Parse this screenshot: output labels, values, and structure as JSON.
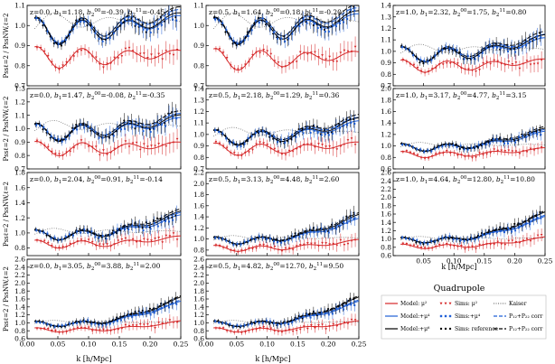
{
  "figure": {
    "ylabel_html": "P^{ss}_{ℓ2} / P^{ss}_{NW,ℓ2}",
    "ylabel_text": "Pssℓ=2 / PssNW,ℓ=2",
    "xlabel": "k [h/Mpc]"
  },
  "chart_data": [
    {
      "id": "p00",
      "type": "line",
      "label": "z=0.0, b1=1.18, b2^00=-0.39, b2^11=-0.45",
      "label_parts": [
        "z=0.0, ",
        "b",
        "1",
        "=1.18, ",
        "b",
        "2",
        "00",
        "=-0.39, ",
        "b",
        "2",
        "11",
        "=-0.45"
      ],
      "ylim": [
        0.7,
        1.1
      ],
      "yticks": [
        0.7,
        0.8,
        0.9,
        1.0,
        1.1
      ],
      "xlim": [
        0,
        0.25
      ],
      "xticks": [
        0.05,
        0.1,
        0.15,
        0.2,
        0.25
      ],
      "base": 0.97,
      "slope": 0.8,
      "red_off": 0.13,
      "noise": 0.02
    },
    {
      "id": "p01",
      "type": "line",
      "label": "z=0.5, b1=1.64, b2^00=0.18, b2^11=-0.20",
      "label_parts": [
        "z=0.5, ",
        "b",
        "1",
        "=1.64, ",
        "b",
        "2",
        "00",
        "=0.18, ",
        "b",
        "2",
        "11",
        "=-0.20"
      ],
      "ylim": [
        0.7,
        1.1
      ],
      "yticks": [
        0.7,
        0.8,
        0.9,
        1.0,
        1.1
      ],
      "xlim": [
        0,
        0.25
      ],
      "xticks": [
        0.05,
        0.1,
        0.15,
        0.2,
        0.25
      ],
      "base": 0.97,
      "slope": 0.9,
      "red_off": 0.14,
      "noise": 0.02
    },
    {
      "id": "p02",
      "type": "line",
      "label": "z=1.0, b1=2.32, b2^00=1.75, b2^11=0.80",
      "label_parts": [
        "z=1.0, ",
        "b",
        "1",
        "=2.32, ",
        "b",
        "2",
        "00",
        "=1.75, ",
        "b",
        "2",
        "11",
        "=0.80"
      ],
      "ylim": [
        0.7,
        1.4
      ],
      "yticks": [
        0.7,
        0.8,
        0.9,
        1.0,
        1.1,
        1.2,
        1.3,
        1.4
      ],
      "xlim": [
        0,
        0.25
      ],
      "xticks": [
        0.05,
        0.1,
        0.15,
        0.2,
        0.25
      ],
      "base": 0.97,
      "slope": 1.6,
      "red_off": 0.1,
      "noise": 0.03
    },
    {
      "id": "p10",
      "type": "line",
      "label": "z=0.0, b1=1.47, b2^00=-0.08, b2^11=-0.35",
      "label_parts": [
        "z=0.0, ",
        "b",
        "1",
        "=1.47, ",
        "b",
        "2",
        "00",
        "=-0.08, ",
        "b",
        "2",
        "11",
        "=-0.35"
      ],
      "ylim": [
        0.7,
        1.3
      ],
      "yticks": [
        0.7,
        0.8,
        0.9,
        1.0,
        1.1,
        1.2,
        1.3
      ],
      "xlim": [
        0,
        0.25
      ],
      "xticks": [
        0.05,
        0.1,
        0.15,
        0.2,
        0.25
      ],
      "base": 0.97,
      "slope": 1.2,
      "red_off": 0.12,
      "noise": 0.03
    },
    {
      "id": "p11",
      "type": "line",
      "label": "z=0.5, b1=2.18, b2^00=1.29, b2^11=0.36",
      "label_parts": [
        "z=0.5, ",
        "b",
        "1",
        "=2.18, ",
        "b",
        "2",
        "00",
        "=1.29, ",
        "b",
        "2",
        "11",
        "=0.36"
      ],
      "ylim": [
        0.7,
        1.4
      ],
      "yticks": [
        0.7,
        0.8,
        0.9,
        1.0,
        1.1,
        1.2,
        1.3,
        1.4
      ],
      "xlim": [
        0,
        0.25
      ],
      "xticks": [
        0.05,
        0.1,
        0.15,
        0.2,
        0.25
      ],
      "base": 0.97,
      "slope": 1.6,
      "red_off": 0.1,
      "noise": 0.03
    },
    {
      "id": "p12",
      "type": "line",
      "label": "z=1.0, b1=3.17, b2^00=4.77, b2^11=3.15",
      "label_parts": [
        "z=1.0, ",
        "b",
        "1",
        "=3.17, ",
        "b",
        "2",
        "00",
        "=4.77, ",
        "b",
        "2",
        "11",
        "=3.15"
      ],
      "ylim": [
        0.6,
        2.0
      ],
      "yticks": [
        0.6,
        0.8,
        1.0,
        1.2,
        1.4,
        1.6,
        1.8,
        2.0
      ],
      "xlim": [
        0,
        0.25
      ],
      "xticks": [
        0.05,
        0.1,
        0.15,
        0.2,
        0.25
      ],
      "base": 0.97,
      "slope": 3.2,
      "red_off": 0.12,
      "noise": 0.04
    },
    {
      "id": "p20",
      "type": "line",
      "label": "z=0.0, b1=2.04, b2^00=0.91, b2^11=-0.14",
      "label_parts": [
        "z=0.0, ",
        "b",
        "1",
        "=2.04, ",
        "b",
        "2",
        "00",
        "=0.91, ",
        "b",
        "2",
        "11",
        "=-0.14"
      ],
      "ylim": [
        0.7,
        1.8
      ],
      "yticks": [
        0.8,
        1.0,
        1.2,
        1.4,
        1.6,
        1.8
      ],
      "xlim": [
        0,
        0.25
      ],
      "xticks": [
        0.05,
        0.1,
        0.15,
        0.2,
        0.25
      ],
      "base": 0.97,
      "slope": 3.0,
      "red_off": 0.12,
      "noise": 0.04
    },
    {
      "id": "p21",
      "type": "line",
      "label": "z=0.5, b1=3.13, b2^00=4.48, b2^11=2.60",
      "label_parts": [
        "z=0.5, ",
        "b",
        "1",
        "=3.13, ",
        "b",
        "2",
        "00",
        "=4.48, ",
        "b",
        "2",
        "11",
        "=2.60"
      ],
      "ylim": [
        0.7,
        2.2
      ],
      "yticks": [
        0.8,
        1.0,
        1.2,
        1.4,
        1.6,
        1.8,
        2.0,
        2.2
      ],
      "xlim": [
        0,
        0.25
      ],
      "xticks": [
        0.05,
        0.1,
        0.15,
        0.2,
        0.25
      ],
      "base": 0.97,
      "slope": 4.5,
      "red_off": 0.14,
      "noise": 0.05
    },
    {
      "id": "p22",
      "type": "line",
      "label": "z=1.0, b1=4.64, b2^00=12.80, b2^11=10.80",
      "label_parts": [
        "z=1.0, ",
        "b",
        "1",
        "=4.64, ",
        "b",
        "2",
        "00",
        "=12.80, ",
        "b",
        "2",
        "11",
        "=10.80"
      ],
      "ylim": [
        0.6,
        2.6
      ],
      "yticks": [
        0.6,
        0.8,
        1.0,
        1.2,
        1.4,
        1.6,
        1.8,
        2.0,
        2.2,
        2.4,
        2.6
      ],
      "xlim": [
        0,
        0.25
      ],
      "xticks": [
        0.05,
        0.1,
        0.15,
        0.2,
        0.25
      ],
      "base": 0.97,
      "slope": 6.5,
      "red_off": 0.15,
      "noise": 0.06
    },
    {
      "id": "p30",
      "type": "line",
      "label": "z=0.0, b1=3.05, b2^00=3.88, b2^11=2.00",
      "label_parts": [
        "z=0.0, ",
        "b",
        "1",
        "=3.05, ",
        "b",
        "2",
        "00",
        "=3.88, ",
        "b",
        "2",
        "11",
        "=2.00"
      ],
      "ylim": [
        0.6,
        2.6
      ],
      "yticks": [
        0.6,
        0.8,
        1.0,
        1.2,
        1.4,
        1.6,
        1.8,
        2.0,
        2.2,
        2.4,
        2.6
      ],
      "xlim": [
        0,
        0.25
      ],
      "xticks": [
        0.0,
        0.05,
        0.1,
        0.15,
        0.2,
        0.25
      ],
      "base": 0.97,
      "slope": 6.5,
      "red_off": 0.15,
      "noise": 0.06
    },
    {
      "id": "p31",
      "type": "line",
      "label": "z=0.5, b1=4.82, b2^00=12.70, b2^11=9.50",
      "label_parts": [
        "z=0.5, ",
        "b",
        "1",
        "=4.82, ",
        "b",
        "2",
        "00",
        "=12.70, ",
        "b",
        "2",
        "11",
        "=9.50"
      ],
      "ylim": [
        0.6,
        2.6
      ],
      "yticks": [
        0.6,
        0.8,
        1.0,
        1.2,
        1.4,
        1.6,
        1.8,
        2.0,
        2.2,
        2.4,
        2.6
      ],
      "xlim": [
        0,
        0.25
      ],
      "xticks": [
        0.0,
        0.05,
        0.1,
        0.15,
        0.2,
        0.25
      ],
      "base": 0.97,
      "slope": 6.5,
      "red_off": 0.15,
      "noise": 0.06
    }
  ],
  "legend": {
    "title": "Quadrupole",
    "entries": [
      {
        "text": "Model: μ²",
        "color": "#d62728",
        "kind": "line"
      },
      {
        "text": "Model:+μ⁴",
        "color": "#1f5fd6",
        "kind": "line"
      },
      {
        "text": "Model:+μ⁶",
        "color": "#000000",
        "kind": "line"
      },
      {
        "text": "Sims: μ²",
        "color": "#d62728",
        "kind": "tri"
      },
      {
        "text": "Sims:+μ⁴",
        "color": "#1f5fd6",
        "kind": "sq"
      },
      {
        "text": "Sims: reference",
        "color": "#000000",
        "kind": "dot"
      },
      {
        "text": "Kaiser",
        "color": "#555555",
        "kind": "dotted"
      },
      {
        "text": "P₁₂+P₂₂ corr",
        "color": "#1f5fd6",
        "kind": "dash"
      },
      {
        "text": "P₁₂+P₂₂ corr",
        "color": "#000000",
        "kind": "dash"
      }
    ]
  }
}
